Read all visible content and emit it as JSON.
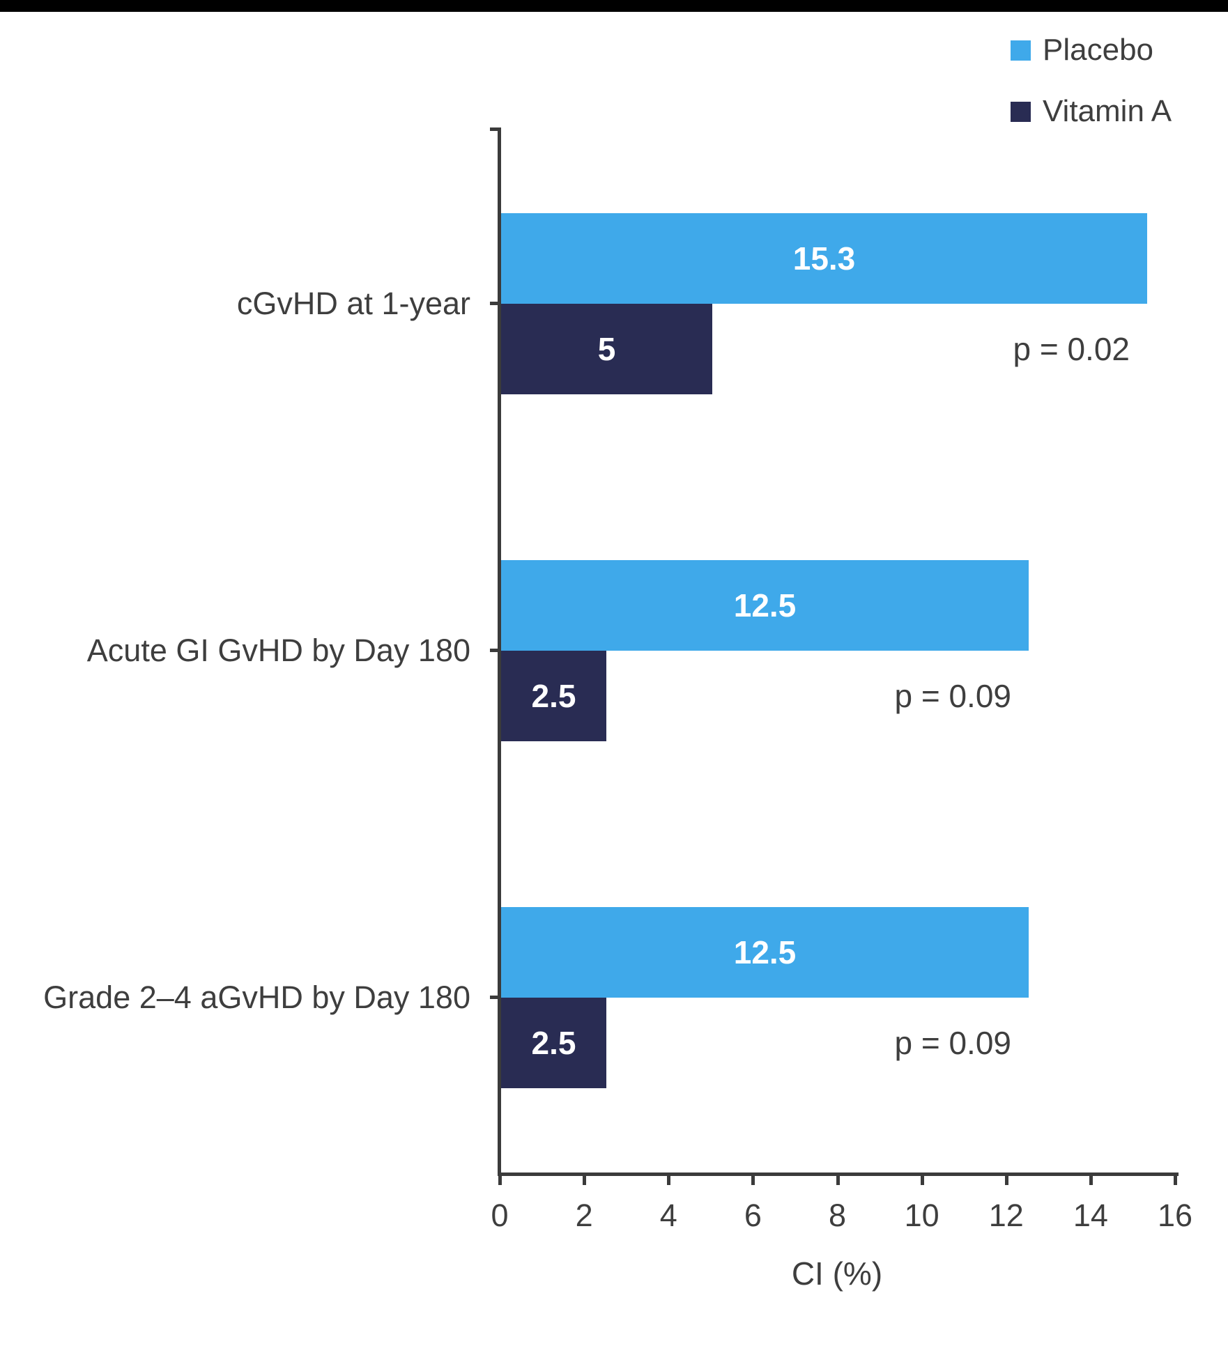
{
  "page": {
    "background": "#ffffff",
    "top_bar_color": "#000000",
    "text_color": "#3e3e3e",
    "axis_color": "#3b3b3b"
  },
  "legend": {
    "position": "top-right",
    "items": [
      {
        "label": "Placebo",
        "color": "#3fa9ea"
      },
      {
        "label": "Vitamin A",
        "color": "#292c53"
      }
    ]
  },
  "chart_data": {
    "type": "bar",
    "orientation": "horizontal",
    "title": "",
    "categories": [
      "cGvHD at 1-year",
      "Acute GI GvHD by Day 180",
      "Grade 2–4 aGvHD by Day 180"
    ],
    "series": [
      {
        "name": "Placebo",
        "color": "#3fa9ea",
        "values": [
          15.3,
          12.5,
          12.5
        ]
      },
      {
        "name": "Vitamin A",
        "color": "#292c53",
        "values": [
          5,
          2.5,
          2.5
        ]
      }
    ],
    "p_values": [
      "p = 0.02",
      "p = 0.09",
      "p = 0.09"
    ],
    "xlabel": "CI (%)",
    "xlim": [
      0,
      16
    ],
    "xticks": [
      0,
      2,
      4,
      6,
      8,
      10,
      12,
      14,
      16
    ],
    "grid": false,
    "legend_position": "top-right",
    "value_label_color": "#ffffff"
  }
}
